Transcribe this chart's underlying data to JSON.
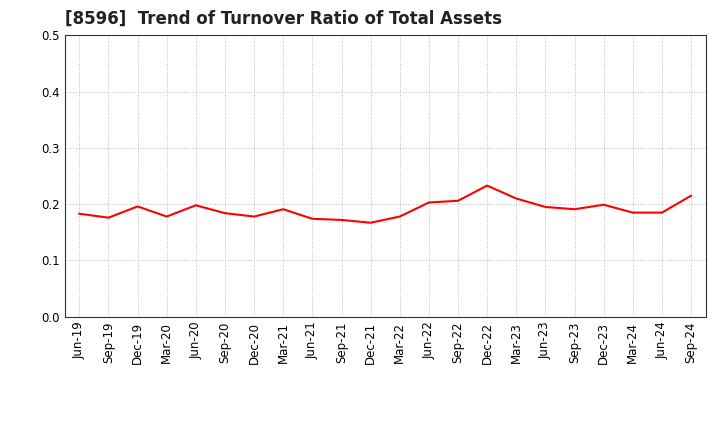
{
  "title": "[8596]  Trend of Turnover Ratio of Total Assets",
  "labels": [
    "Jun-19",
    "Sep-19",
    "Dec-19",
    "Mar-20",
    "Jun-20",
    "Sep-20",
    "Dec-20",
    "Mar-21",
    "Jun-21",
    "Sep-21",
    "Dec-21",
    "Mar-22",
    "Jun-22",
    "Sep-22",
    "Dec-22",
    "Mar-23",
    "Jun-23",
    "Sep-23",
    "Dec-23",
    "Mar-24",
    "Jun-24",
    "Sep-24"
  ],
  "values": [
    0.183,
    0.176,
    0.196,
    0.178,
    0.198,
    0.184,
    0.178,
    0.191,
    0.174,
    0.172,
    0.167,
    0.178,
    0.203,
    0.206,
    0.233,
    0.21,
    0.195,
    0.191,
    0.199,
    0.185,
    0.185,
    0.215
  ],
  "line_color": "#FF0000",
  "background_color": "#ffffff",
  "grid_color": "#bbbbbb",
  "ylim": [
    0.0,
    0.5
  ],
  "yticks": [
    0.0,
    0.1,
    0.2,
    0.3,
    0.4,
    0.5
  ],
  "title_fontsize": 12,
  "tick_fontsize": 8.5,
  "title_color": "#222222"
}
